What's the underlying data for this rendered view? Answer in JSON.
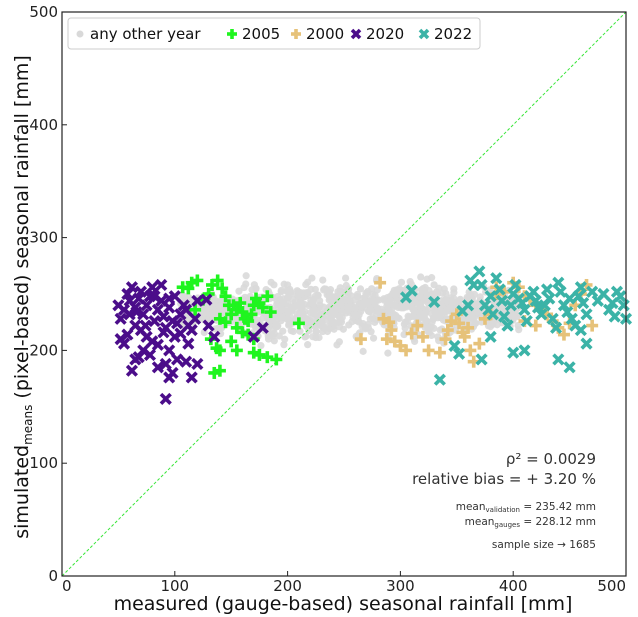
{
  "chart_data": {
    "type": "scatter",
    "xlabel": "measured (gauge-based) seasonal rainfall  [mm]",
    "ylabel_main": "simulated",
    "ylabel_sub": "means",
    "ylabel_rest": " (pixel-based) seasonal rainfall  [mm]",
    "xlim": [
      0,
      500
    ],
    "ylim": [
      0,
      500
    ],
    "xticks": [
      0,
      100,
      200,
      300,
      400,
      500
    ],
    "yticks": [
      0,
      100,
      200,
      300,
      400,
      500
    ],
    "xtick_labels": [
      "0",
      "100",
      "200",
      "300",
      "400",
      "500"
    ],
    "ytick_labels": [
      "0",
      "100",
      "200",
      "300",
      "400",
      "500"
    ],
    "identity_line": true,
    "legend_position": "top-left",
    "legend": [
      {
        "label": "any other year",
        "marker": "dot",
        "color": "#d9d9d9"
      },
      {
        "label": "2005",
        "marker": "plus",
        "color": "#1ff51f"
      },
      {
        "label": "2000",
        "marker": "plus",
        "color": "#e6c27a"
      },
      {
        "label": "2020",
        "marker": "x",
        "color": "#4b0d8a"
      },
      {
        "label": "2022",
        "marker": "x",
        "color": "#3bb3a7"
      }
    ],
    "stats": {
      "rho2": "ρ² = 0.0029",
      "bias": "relative bias = + 3.20 %",
      "mean_validation_label": "mean",
      "mean_validation_sub": "validation",
      "mean_validation_value": " = 235.42 mm",
      "mean_gauges_label": "mean",
      "mean_gauges_sub": "gauges",
      "mean_gauges_value": " = 228.12 mm",
      "sample_size": "sample size → 1685"
    },
    "series": [
      {
        "name": "2005",
        "marker": "plus",
        "color": "#1ff51f",
        "points": [
          [
            107,
            256
          ],
          [
            112,
            255
          ],
          [
            115,
            260
          ],
          [
            120,
            262
          ],
          [
            118,
            236
          ],
          [
            125,
            245
          ],
          [
            130,
            250
          ],
          [
            133,
            258
          ],
          [
            138,
            262
          ],
          [
            142,
            255
          ],
          [
            145,
            248
          ],
          [
            148,
            240
          ],
          [
            150,
            232
          ],
          [
            152,
            240
          ],
          [
            155,
            236
          ],
          [
            158,
            242
          ],
          [
            160,
            234
          ],
          [
            162,
            228
          ],
          [
            165,
            226
          ],
          [
            168,
            232
          ],
          [
            170,
            240
          ],
          [
            172,
            246
          ],
          [
            175,
            242
          ],
          [
            178,
            238
          ],
          [
            182,
            248
          ],
          [
            185,
            234
          ],
          [
            140,
            228
          ],
          [
            145,
            225
          ],
          [
            155,
            220
          ],
          [
            160,
            216
          ],
          [
            165,
            214
          ],
          [
            170,
            210
          ],
          [
            150,
            208
          ],
          [
            132,
            210
          ],
          [
            140,
            200
          ],
          [
            137,
            202
          ],
          [
            155,
            200
          ],
          [
            170,
            198
          ],
          [
            175,
            196
          ],
          [
            182,
            194
          ],
          [
            190,
            192
          ],
          [
            140,
            182
          ],
          [
            135,
            180
          ],
          [
            210,
            224
          ]
        ]
      },
      {
        "name": "2000",
        "marker": "plus",
        "color": "#e6c27a",
        "points": [
          [
            282,
            260
          ],
          [
            285,
            228
          ],
          [
            290,
            225
          ],
          [
            292,
            218
          ],
          [
            288,
            210
          ],
          [
            295,
            208
          ],
          [
            300,
            204
          ],
          [
            305,
            200
          ],
          [
            310,
            215
          ],
          [
            315,
            222
          ],
          [
            320,
            212
          ],
          [
            325,
            200
          ],
          [
            335,
            198
          ],
          [
            340,
            210
          ],
          [
            342,
            218
          ],
          [
            345,
            226
          ],
          [
            350,
            232
          ],
          [
            352,
            224
          ],
          [
            355,
            216
          ],
          [
            357,
            212
          ],
          [
            360,
            220
          ],
          [
            362,
            200
          ],
          [
            365,
            190
          ],
          [
            370,
            206
          ],
          [
            375,
            228
          ],
          [
            380,
            232
          ],
          [
            385,
            250
          ],
          [
            392,
            252
          ],
          [
            400,
            260
          ],
          [
            405,
            256
          ],
          [
            410,
            248
          ],
          [
            415,
            245
          ],
          [
            420,
            240
          ],
          [
            425,
            236
          ],
          [
            430,
            232
          ],
          [
            435,
            226
          ],
          [
            440,
            220
          ],
          [
            445,
            214
          ],
          [
            450,
            224
          ],
          [
            455,
            240
          ],
          [
            460,
            250
          ],
          [
            465,
            258
          ],
          [
            470,
            222
          ],
          [
            265,
            210
          ],
          [
            410,
            226
          ],
          [
            420,
            222
          ],
          [
            385,
            256
          ]
        ]
      },
      {
        "name": "2020",
        "marker": "x",
        "color": "#4b0d8a",
        "points": [
          [
            50,
            240
          ],
          [
            52,
            228
          ],
          [
            55,
            236
          ],
          [
            58,
            250
          ],
          [
            60,
            244
          ],
          [
            62,
            256
          ],
          [
            65,
            238
          ],
          [
            68,
            246
          ],
          [
            70,
            252
          ],
          [
            72,
            232
          ],
          [
            75,
            240
          ],
          [
            78,
            248
          ],
          [
            80,
            256
          ],
          [
            82,
            226
          ],
          [
            85,
            236
          ],
          [
            88,
            244
          ],
          [
            90,
            230
          ],
          [
            92,
            220
          ],
          [
            95,
            238
          ],
          [
            98,
            226
          ],
          [
            100,
            212
          ],
          [
            102,
            224
          ],
          [
            105,
            232
          ],
          [
            108,
            240
          ],
          [
            110,
            236
          ],
          [
            112,
            222
          ],
          [
            115,
            218
          ],
          [
            118,
            228
          ],
          [
            60,
            232
          ],
          [
            65,
            222
          ],
          [
            70,
            218
          ],
          [
            75,
            212
          ],
          [
            80,
            208
          ],
          [
            85,
            205
          ],
          [
            90,
            216
          ],
          [
            95,
            200
          ],
          [
            72,
            200
          ],
          [
            78,
            196
          ],
          [
            68,
            194
          ],
          [
            65,
            192
          ],
          [
            62,
            182
          ],
          [
            85,
            185
          ],
          [
            92,
            188
          ],
          [
            98,
            180
          ],
          [
            102,
            192
          ],
          [
            110,
            190
          ],
          [
            120,
            188
          ],
          [
            115,
            176
          ],
          [
            95,
            176
          ],
          [
            135,
            212
          ],
          [
            130,
            222
          ],
          [
            170,
            212
          ],
          [
            178,
            220
          ],
          [
            120,
            244
          ],
          [
            128,
            245
          ],
          [
            52,
            210
          ],
          [
            58,
            214
          ],
          [
            66,
            234
          ],
          [
            74,
            222
          ],
          [
            82,
            248
          ],
          [
            88,
            258
          ],
          [
            95,
            246
          ],
          [
            100,
            248
          ],
          [
            92,
            157
          ],
          [
            105,
            215
          ],
          [
            112,
            206
          ],
          [
            55,
            206
          ]
        ]
      },
      {
        "name": "2022",
        "marker": "x",
        "color": "#3bb3a7",
        "points": [
          [
            305,
            247
          ],
          [
            310,
            253
          ],
          [
            330,
            243
          ],
          [
            335,
            174
          ],
          [
            348,
            204
          ],
          [
            355,
            235
          ],
          [
            360,
            240
          ],
          [
            362,
            262
          ],
          [
            365,
            258
          ],
          [
            370,
            270
          ],
          [
            372,
            258
          ],
          [
            375,
            240
          ],
          [
            378,
            236
          ],
          [
            380,
            248
          ],
          [
            382,
            232
          ],
          [
            385,
            264
          ],
          [
            388,
            254
          ],
          [
            390,
            244
          ],
          [
            392,
            230
          ],
          [
            395,
            222
          ],
          [
            398,
            240
          ],
          [
            400,
            250
          ],
          [
            402,
            258
          ],
          [
            405,
            246
          ],
          [
            408,
            242
          ],
          [
            410,
            236
          ],
          [
            412,
            226
          ],
          [
            415,
            248
          ],
          [
            418,
            252
          ],
          [
            420,
            244
          ],
          [
            422,
            238
          ],
          [
            425,
            232
          ],
          [
            428,
            240
          ],
          [
            430,
            254
          ],
          [
            432,
            246
          ],
          [
            435,
            228
          ],
          [
            438,
            220
          ],
          [
            440,
            260
          ],
          [
            442,
            252
          ],
          [
            445,
            240
          ],
          [
            448,
            234
          ],
          [
            450,
            246
          ],
          [
            452,
            228
          ],
          [
            455,
            222
          ],
          [
            458,
            248
          ],
          [
            460,
            256
          ],
          [
            462,
            242
          ],
          [
            465,
            232
          ],
          [
            470,
            252
          ],
          [
            475,
            244
          ],
          [
            480,
            250
          ],
          [
            485,
            236
          ],
          [
            488,
            242
          ],
          [
            490,
            230
          ],
          [
            492,
            252
          ],
          [
            495,
            248
          ],
          [
            498,
            240
          ],
          [
            500,
            228
          ],
          [
            400,
            198
          ],
          [
            410,
            200
          ],
          [
            440,
            192
          ],
          [
            450,
            185
          ],
          [
            395,
            222
          ],
          [
            372,
            192
          ],
          [
            380,
            212
          ],
          [
            352,
            197
          ],
          [
            460,
            218
          ],
          [
            465,
            206
          ]
        ]
      }
    ]
  }
}
